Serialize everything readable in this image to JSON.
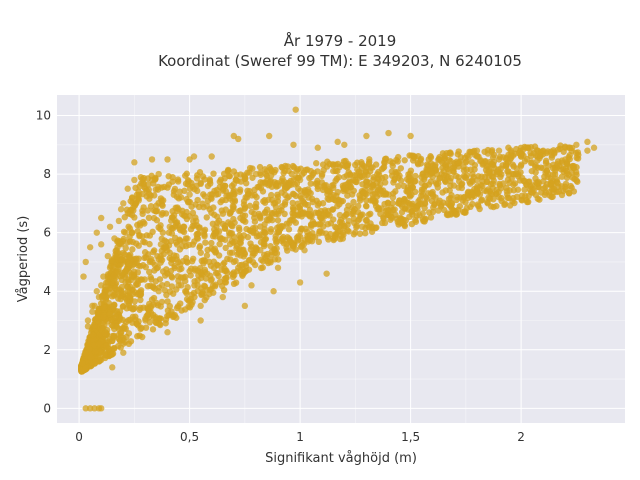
{
  "chart_data": {
    "type": "scatter",
    "title_line1": "År 1979 - 2019",
    "title_line2": "Koordinat (Sweref 99 TM): E 349203, N 6240105",
    "xlabel": "Signifikant våghöjd (m)",
    "ylabel": "Vågperiod (s)",
    "xlim": [
      -0.1,
      2.47
    ],
    "ylim": [
      -0.5,
      10.7
    ],
    "x_ticks": [
      0,
      0.5,
      1,
      1.5,
      2
    ],
    "x_tick_labels": [
      "0",
      "0,5",
      "1",
      "1,5",
      "2"
    ],
    "y_ticks": [
      0,
      2,
      4,
      6,
      8,
      10
    ],
    "y_tick_labels": [
      "0",
      "2",
      "4",
      "6",
      "8",
      "10"
    ],
    "grid": true,
    "colors": {
      "marker": "#d4a31f",
      "plot_bg": "#e8e8f0"
    },
    "series": [
      {
        "values_note": "",
        "x": [
          0.02,
          0.03,
          0.05,
          0.07,
          0.09,
          0.1,
          0.04,
          0.06,
          0.08,
          0.02,
          0.03,
          0.05,
          0.08,
          0.1,
          0.12,
          0.15,
          0.04,
          0.06,
          0.09,
          0.11,
          0.13,
          0.16,
          0.18,
          0.2,
          0.22,
          0.25,
          0.07,
          0.1,
          0.14,
          0.17,
          0.21,
          0.24,
          0.27,
          0.3,
          0.33,
          0.36,
          0.12,
          0.18,
          0.23,
          0.28,
          0.32,
          0.37,
          0.41,
          0.45,
          0.5,
          0.55,
          0.2,
          0.26,
          0.31,
          0.36,
          0.4,
          0.44,
          0.49,
          0.53,
          0.58,
          0.62,
          0.66,
          0.71,
          0.75,
          0.8,
          0.85,
          0.9,
          0.95,
          1.0,
          1.05,
          1.1,
          1.15,
          1.2,
          1.25,
          1.3,
          1.35,
          1.4,
          1.45,
          1.5,
          1.55,
          1.6,
          1.65,
          1.7,
          1.75,
          1.8,
          1.85,
          1.9,
          1.95,
          2.0,
          2.05,
          2.1,
          2.15,
          2.2,
          2.25,
          2.3,
          2.33,
          0.3,
          0.42,
          0.55,
          0.65,
          0.78,
          0.9,
          1.02,
          1.15,
          1.28,
          1.4,
          0.35,
          0.48,
          0.6,
          0.72,
          0.85,
          0.97,
          1.1,
          1.22,
          1.35,
          1.47,
          1.6,
          0.45,
          0.58,
          0.7,
          0.82,
          0.95,
          1.05,
          1.18,
          1.3,
          1.42,
          1.55,
          1.68,
          1.8,
          0.03,
          0.05,
          0.07,
          0.09,
          0.1,
          0.5,
          0.52,
          0.7,
          0.72,
          0.86,
          0.97,
          1.08,
          1.17,
          1.3,
          1.4,
          1.5,
          0.98,
          0.25,
          0.33,
          0.4,
          0.6,
          1.2,
          1.8,
          2.0,
          2.1,
          2.2,
          2.3,
          0.15,
          0.2,
          0.4,
          0.55,
          0.75,
          0.88,
          1.0,
          1.12,
          0.1,
          0.14,
          0.19,
          0.24
        ],
        "y": [
          1.3,
          1.5,
          1.8,
          2.1,
          1.6,
          2.5,
          3.0,
          3.5,
          4.0,
          4.5,
          5.0,
          5.5,
          6.0,
          6.5,
          2.0,
          2.3,
          2.8,
          3.3,
          3.8,
          4.5,
          5.2,
          5.8,
          6.4,
          7.0,
          7.5,
          7.8,
          3.5,
          4.2,
          4.8,
          5.4,
          6.0,
          6.6,
          7.1,
          7.5,
          7.8,
          8.0,
          2.6,
          3.2,
          3.8,
          4.4,
          5.0,
          5.6,
          6.2,
          6.8,
          7.3,
          7.7,
          2.4,
          2.9,
          3.4,
          4.0,
          4.6,
          5.2,
          5.8,
          6.4,
          6.9,
          7.3,
          7.6,
          7.8,
          7.9,
          8.0,
          8.1,
          7.6,
          7.7,
          7.8,
          7.9,
          8.0,
          8.1,
          7.9,
          7.8,
          7.6,
          7.4,
          7.3,
          7.1,
          7.5,
          7.7,
          7.9,
          8.1,
          8.3,
          8.4,
          8.6,
          8.7,
          8.8,
          8.5,
          8.6,
          8.4,
          8.2,
          8.7,
          8.9,
          9.0,
          9.1,
          8.9,
          3.0,
          3.2,
          3.5,
          3.8,
          4.2,
          4.8,
          5.4,
          5.8,
          6.2,
          6.6,
          3.6,
          4.0,
          4.4,
          4.8,
          5.2,
          5.6,
          6.0,
          6.4,
          6.8,
          7.1,
          7.3,
          4.2,
          4.6,
          5.0,
          5.4,
          5.8,
          6.2,
          6.6,
          6.9,
          7.2,
          7.4,
          7.6,
          7.8,
          0.0,
          0.0,
          0.0,
          0.0,
          0.0,
          8.5,
          8.6,
          9.3,
          9.2,
          9.3,
          9.0,
          8.9,
          9.1,
          9.3,
          9.4,
          9.3,
          10.2,
          8.4,
          8.5,
          8.5,
          8.6,
          9.0,
          8.8,
          8.6,
          8.8,
          8.5,
          8.8,
          1.4,
          1.9,
          2.6,
          3.0,
          3.5,
          4.0,
          4.3,
          4.6,
          5.6,
          6.2,
          6.8,
          7.2
        ]
      }
    ]
  }
}
